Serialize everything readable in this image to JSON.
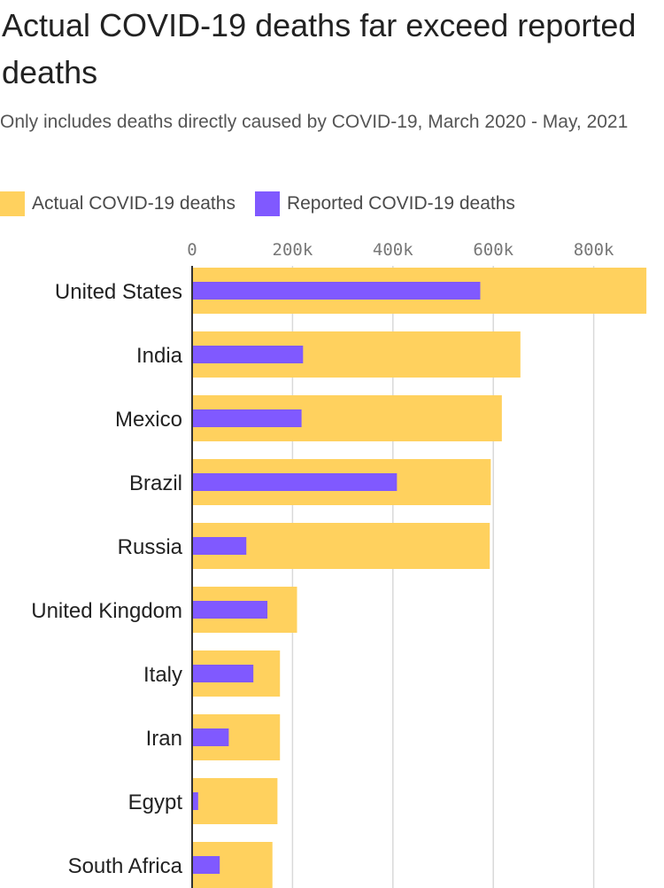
{
  "title": "Actual COVID-19 deaths far exceed reported deaths",
  "subtitle": "Only includes deaths directly caused by COVID-19, March 2020 - May, 2021",
  "colors": {
    "actual": "#FFD15E",
    "reported": "#8059FF",
    "grid": "#d9d9d9",
    "axis": "#333333"
  },
  "chart_data": {
    "type": "bar",
    "orientation": "horizontal",
    "categories": [
      "United States",
      "India",
      "Mexico",
      "Brazil",
      "Russia",
      "United Kingdom",
      "Italy",
      "Iran",
      "Egypt",
      "South Africa"
    ],
    "series": [
      {
        "name": "Actual COVID-19 deaths",
        "values": [
          905000,
          654000,
          617000,
          595000,
          593000,
          209000,
          175000,
          175000,
          170000,
          160000
        ]
      },
      {
        "name": "Reported COVID-19 deaths",
        "values": [
          574000,
          221000,
          218000,
          408000,
          108000,
          150000,
          122000,
          73000,
          12000,
          55000
        ]
      }
    ],
    "xticks": [
      "0",
      "200k",
      "400k",
      "600k",
      "800k"
    ],
    "xtick_values": [
      0,
      200000,
      400000,
      600000,
      800000
    ],
    "xlim": [
      0,
      905000
    ],
    "grid": true,
    "legend_position": "top-left"
  }
}
